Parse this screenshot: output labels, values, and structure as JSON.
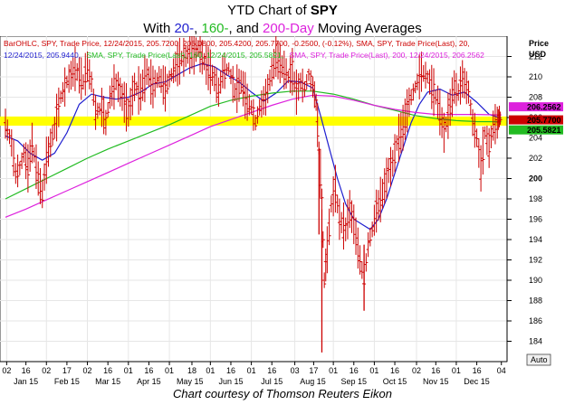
{
  "title": {
    "prefix": "YTD Chart of ",
    "ticker": "SPY",
    "line2_a": "With ",
    "line2_20": "20-",
    "line2_sep1": ", ",
    "line2_160": "160-",
    "line2_sep2": ", and ",
    "line2_200": "200-Day",
    "line2_b": " Moving Averages"
  },
  "caption": "Chart courtesy of Thomson Reuters Eikon",
  "legend": {
    "line1": "BarOHLC, SPY, Trade Price, 12/24/2015, 205.7200, 206.0800, 205.4200, 205.7700, -0.2500, (-0.12%), SMA, SPY, Trade Price(Last), 20,",
    "line2_a": "12/24/2015, 205.9440,",
    "line2_b": "SMA, SPY, Trade Price(Last), 160, 12/24/2015, 205.5821,",
    "line2_c": "SMA, SPY, Trade Price(Last), 200, 12/24/2015, 206.2562"
  },
  "axis_header": {
    "price": "Price",
    "currency": "USD"
  },
  "auto_label": "Auto",
  "colors": {
    "bars": "#cc0000",
    "sma20": "#1f1fcf",
    "sma160": "#22bb22",
    "sma200": "#dd22dd",
    "highlight": "#ffff00",
    "grid": "#e6e6e6"
  },
  "chart_data": {
    "type": "line",
    "ylim": [
      182,
      214
    ],
    "yticks": [
      184,
      186,
      188,
      190,
      192,
      194,
      196,
      198,
      200,
      202,
      204,
      206,
      208,
      210,
      212
    ],
    "x_day_ticks": [
      {
        "label": "02",
        "m": 0.03
      },
      {
        "label": "16",
        "m": 0.5
      },
      {
        "label": "02",
        "m": 1.0
      },
      {
        "label": "17",
        "m": 1.5
      },
      {
        "label": "02",
        "m": 2.0
      },
      {
        "label": "16",
        "m": 2.5
      },
      {
        "label": "01",
        "m": 3.0
      },
      {
        "label": "16",
        "m": 3.5
      },
      {
        "label": "01",
        "m": 4.0
      },
      {
        "label": "18",
        "m": 4.55
      },
      {
        "label": "01",
        "m": 5.0
      },
      {
        "label": "16",
        "m": 5.5
      },
      {
        "label": "01",
        "m": 6.0
      },
      {
        "label": "16",
        "m": 6.5
      },
      {
        "label": "03",
        "m": 7.06
      },
      {
        "label": "17",
        "m": 7.52
      },
      {
        "label": "01",
        "m": 8.0
      },
      {
        "label": "16",
        "m": 8.5
      },
      {
        "label": "01",
        "m": 9.0
      },
      {
        "label": "16",
        "m": 9.5
      },
      {
        "label": "02",
        "m": 10.03
      },
      {
        "label": "16",
        "m": 10.5
      },
      {
        "label": "01",
        "m": 11.0
      },
      {
        "label": "16",
        "m": 11.5
      },
      {
        "label": "04",
        "m": 12.1
      }
    ],
    "x_months": [
      {
        "label": "Jan 15",
        "m": 0.5
      },
      {
        "label": "Feb 15",
        "m": 1.5
      },
      {
        "label": "Mar 15",
        "m": 2.5
      },
      {
        "label": "Apr 15",
        "m": 3.5
      },
      {
        "label": "May 15",
        "m": 4.5
      },
      {
        "label": "Jun 15",
        "m": 5.5
      },
      {
        "label": "Jul 15",
        "m": 6.5
      },
      {
        "label": "Aug 15",
        "m": 7.5
      },
      {
        "label": "Sep 15",
        "m": 8.5
      },
      {
        "label": "Oct 15",
        "m": 9.5
      },
      {
        "label": "Nov 15",
        "m": 10.5
      },
      {
        "label": "Dec 15",
        "m": 11.5
      }
    ],
    "price_tags": [
      {
        "value": 206.2562,
        "label": "206.2562",
        "color": "#dd22dd"
      },
      {
        "value": 205.77,
        "label": "205.7700",
        "color": "#cc0000"
      },
      {
        "value": 205.5821,
        "label": "205.5821",
        "color": "#22bb22"
      }
    ],
    "bold_tick": 200,
    "highlight_band": [
      205.2,
      206.1
    ],
    "price_path": [
      [
        0.0,
        205.4
      ],
      [
        0.15,
        203.5
      ],
      [
        0.25,
        200.5
      ],
      [
        0.35,
        201.0
      ],
      [
        0.45,
        202.5
      ],
      [
        0.55,
        201.0
      ],
      [
        0.65,
        203.5
      ],
      [
        0.8,
        200.0
      ],
      [
        0.9,
        198.5
      ],
      [
        1.0,
        201.8
      ],
      [
        1.1,
        203.5
      ],
      [
        1.2,
        205.0
      ],
      [
        1.35,
        208.0
      ],
      [
        1.5,
        209.5
      ],
      [
        1.7,
        210.8
      ],
      [
        1.9,
        209.5
      ],
      [
        2.0,
        211.0
      ],
      [
        2.1,
        209.5
      ],
      [
        2.2,
        206.5
      ],
      [
        2.35,
        207.0
      ],
      [
        2.45,
        205.5
      ],
      [
        2.55,
        208.0
      ],
      [
        2.7,
        209.5
      ],
      [
        2.85,
        208.0
      ],
      [
        3.0,
        206.5
      ],
      [
        3.15,
        209.0
      ],
      [
        3.3,
        208.5
      ],
      [
        3.45,
        210.5
      ],
      [
        3.6,
        209.0
      ],
      [
        3.75,
        210.0
      ],
      [
        3.9,
        208.8
      ],
      [
        4.0,
        209.8
      ],
      [
        4.15,
        211.0
      ],
      [
        4.3,
        211.8
      ],
      [
        4.5,
        212.3
      ],
      [
        4.7,
        212.8
      ],
      [
        4.85,
        211.5
      ],
      [
        5.0,
        210.5
      ],
      [
        5.1,
        209.8
      ],
      [
        5.2,
        208.5
      ],
      [
        5.3,
        210.5
      ],
      [
        5.45,
        210.8
      ],
      [
        5.6,
        208.5
      ],
      [
        5.75,
        209.5
      ],
      [
        5.9,
        207.5
      ],
      [
        6.0,
        207.0
      ],
      [
        6.1,
        205.5
      ],
      [
        6.2,
        207.0
      ],
      [
        6.35,
        208.0
      ],
      [
        6.5,
        210.5
      ],
      [
        6.6,
        212.0
      ],
      [
        6.75,
        211.0
      ],
      [
        6.9,
        210.0
      ],
      [
        7.0,
        210.5
      ],
      [
        7.1,
        208.5
      ],
      [
        7.2,
        209.5
      ],
      [
        7.3,
        208.8
      ],
      [
        7.4,
        210.2
      ],
      [
        7.5,
        209.0
      ],
      [
        7.58,
        207.5
      ],
      [
        7.65,
        203.0
      ],
      [
        7.72,
        198.0
      ],
      [
        7.78,
        190.0
      ],
      [
        7.85,
        193.0
      ],
      [
        7.95,
        197.5
      ],
      [
        8.05,
        199.0
      ],
      [
        8.15,
        196.0
      ],
      [
        8.3,
        195.0
      ],
      [
        8.4,
        197.0
      ],
      [
        8.5,
        195.5
      ],
      [
        8.65,
        192.0
      ],
      [
        8.75,
        190.0
      ],
      [
        8.85,
        193.5
      ],
      [
        8.95,
        195.0
      ],
      [
        9.05,
        196.8
      ],
      [
        9.2,
        198.5
      ],
      [
        9.35,
        200.8
      ],
      [
        9.45,
        201.5
      ],
      [
        9.55,
        203.5
      ],
      [
        9.7,
        205.0
      ],
      [
        9.85,
        207.5
      ],
      [
        9.95,
        208.5
      ],
      [
        10.05,
        209.5
      ],
      [
        10.15,
        210.5
      ],
      [
        10.3,
        210.0
      ],
      [
        10.45,
        208.5
      ],
      [
        10.55,
        207.5
      ],
      [
        10.7,
        204.5
      ],
      [
        10.85,
        207.0
      ],
      [
        10.95,
        209.0
      ],
      [
        11.05,
        208.5
      ],
      [
        11.15,
        209.8
      ],
      [
        11.3,
        208.5
      ],
      [
        11.4,
        205.5
      ],
      [
        11.5,
        204.0
      ],
      [
        11.6,
        201.0
      ],
      [
        11.7,
        204.5
      ],
      [
        11.8,
        203.0
      ],
      [
        11.9,
        205.2
      ],
      [
        12.0,
        205.5
      ],
      [
        12.05,
        206.1
      ],
      [
        12.1,
        205.77
      ]
    ],
    "spikes": [
      {
        "m": 7.72,
        "low": 182.9,
        "high": 197.0
      },
      {
        "m": 8.75,
        "low": 187.0,
        "high": 193.5
      },
      {
        "m": 7.65,
        "low": 194.5,
        "high": 203.0
      }
    ],
    "series": [
      {
        "name": "SMA 20",
        "color": "#1f1fcf",
        "values": [
          [
            0.0,
            204.2
          ],
          [
            0.3,
            203.7
          ],
          [
            0.6,
            202.5
          ],
          [
            0.9,
            201.8
          ],
          [
            1.2,
            202.5
          ],
          [
            1.5,
            204.5
          ],
          [
            1.8,
            207.3
          ],
          [
            2.1,
            208.3
          ],
          [
            2.4,
            208.0
          ],
          [
            2.7,
            207.8
          ],
          [
            3.0,
            208.0
          ],
          [
            3.3,
            208.5
          ],
          [
            3.6,
            209.3
          ],
          [
            3.9,
            209.5
          ],
          [
            4.2,
            210.2
          ],
          [
            4.5,
            210.9
          ],
          [
            4.8,
            211.3
          ],
          [
            5.1,
            211.0
          ],
          [
            5.4,
            210.2
          ],
          [
            5.7,
            209.5
          ],
          [
            6.0,
            208.5
          ],
          [
            6.3,
            207.6
          ],
          [
            6.6,
            208.4
          ],
          [
            6.9,
            209.6
          ],
          [
            7.2,
            209.5
          ],
          [
            7.5,
            208.9
          ],
          [
            7.7,
            206.0
          ],
          [
            7.9,
            203.0
          ],
          [
            8.1,
            200.0
          ],
          [
            8.3,
            197.5
          ],
          [
            8.5,
            196.0
          ],
          [
            8.7,
            195.5
          ],
          [
            8.9,
            195.0
          ],
          [
            9.1,
            196.0
          ],
          [
            9.3,
            198.0
          ],
          [
            9.5,
            200.5
          ],
          [
            9.7,
            203.0
          ],
          [
            9.9,
            205.5
          ],
          [
            10.1,
            207.3
          ],
          [
            10.3,
            208.5
          ],
          [
            10.6,
            208.8
          ],
          [
            10.9,
            208.2
          ],
          [
            11.2,
            208.5
          ],
          [
            11.5,
            207.5
          ],
          [
            11.8,
            206.3
          ],
          [
            12.1,
            205.94
          ]
        ]
      },
      {
        "name": "SMA 160",
        "color": "#22bb22",
        "values": [
          [
            0.0,
            198.0
          ],
          [
            0.5,
            199.0
          ],
          [
            1.0,
            200.0
          ],
          [
            1.5,
            201.0
          ],
          [
            2.0,
            202.0
          ],
          [
            2.5,
            202.9
          ],
          [
            3.0,
            203.7
          ],
          [
            3.5,
            204.5
          ],
          [
            4.0,
            205.3
          ],
          [
            4.5,
            206.2
          ],
          [
            5.0,
            207.1
          ],
          [
            5.5,
            207.7
          ],
          [
            6.0,
            208.1
          ],
          [
            6.5,
            208.4
          ],
          [
            7.0,
            208.6
          ],
          [
            7.5,
            208.6
          ],
          [
            8.0,
            208.3
          ],
          [
            8.5,
            207.8
          ],
          [
            9.0,
            207.2
          ],
          [
            9.5,
            206.7
          ],
          [
            10.0,
            206.2
          ],
          [
            10.5,
            205.9
          ],
          [
            11.0,
            205.7
          ],
          [
            11.5,
            205.6
          ],
          [
            12.1,
            205.58
          ]
        ]
      },
      {
        "name": "SMA 200",
        "color": "#dd22dd",
        "values": [
          [
            0.0,
            196.2
          ],
          [
            0.5,
            197.0
          ],
          [
            1.0,
            197.9
          ],
          [
            1.5,
            198.8
          ],
          [
            2.0,
            199.7
          ],
          [
            2.5,
            200.6
          ],
          [
            3.0,
            201.5
          ],
          [
            3.5,
            202.4
          ],
          [
            4.0,
            203.3
          ],
          [
            4.5,
            204.2
          ],
          [
            5.0,
            205.1
          ],
          [
            5.5,
            205.8
          ],
          [
            6.0,
            206.5
          ],
          [
            6.5,
            207.2
          ],
          [
            7.0,
            207.8
          ],
          [
            7.5,
            208.2
          ],
          [
            8.0,
            208.1
          ],
          [
            8.5,
            207.7
          ],
          [
            9.0,
            207.2
          ],
          [
            9.5,
            206.8
          ],
          [
            10.0,
            206.5
          ],
          [
            10.5,
            206.3
          ],
          [
            11.0,
            206.3
          ],
          [
            11.5,
            206.3
          ],
          [
            12.1,
            206.26
          ]
        ]
      }
    ]
  }
}
